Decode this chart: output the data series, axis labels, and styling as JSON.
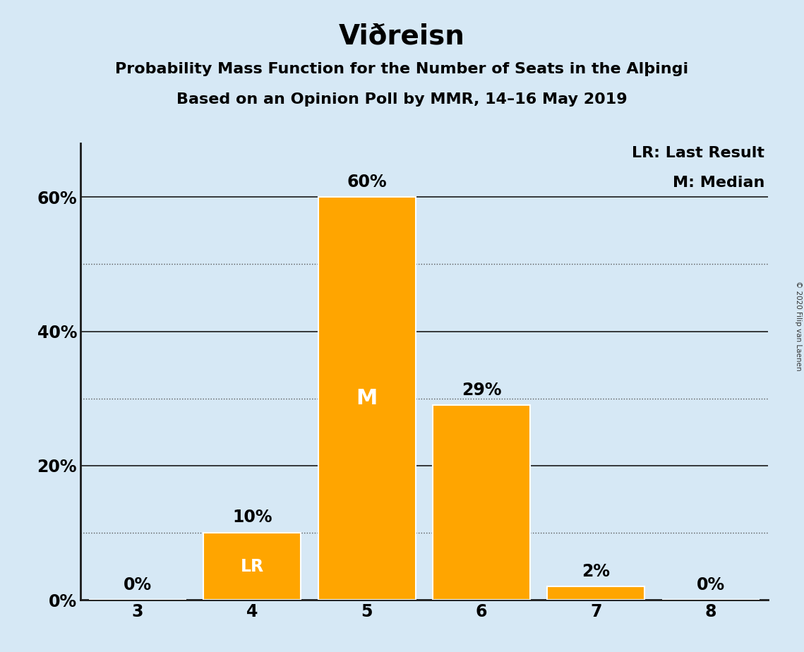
{
  "title": "Viðreisn",
  "subtitle1": "Probability Mass Function for the Number of Seats in the Alþingi",
  "subtitle2": "Based on an Opinion Poll by MMR, 14–16 May 2019",
  "categories": [
    3,
    4,
    5,
    6,
    7,
    8
  ],
  "values": [
    0,
    10,
    60,
    29,
    2,
    0
  ],
  "bar_color": "#FFA500",
  "background_color": "#D6E8F5",
  "bar_edge_color": "white",
  "title_fontsize": 28,
  "subtitle_fontsize": 16,
  "label_fontsize": 16,
  "tick_fontsize": 17,
  "annotation_fontsize": 17,
  "ylim": [
    0,
    68
  ],
  "yticks_solid": [
    0,
    20,
    40,
    60
  ],
  "yticks_dotted": [
    10,
    30,
    50
  ],
  "ytick_labels_solid": [
    "0%",
    "20%",
    "40%",
    "60%"
  ],
  "legend_text1": "LR: Last Result",
  "legend_text2": "M: Median",
  "lr_bar": 4,
  "median_bar": 5,
  "copyright_text": "© 2020 Filip van Laenen",
  "grid_solid_color": "#1a1a1a",
  "grid_dotted_color": "#555555",
  "axis_linewidth": 2.0
}
